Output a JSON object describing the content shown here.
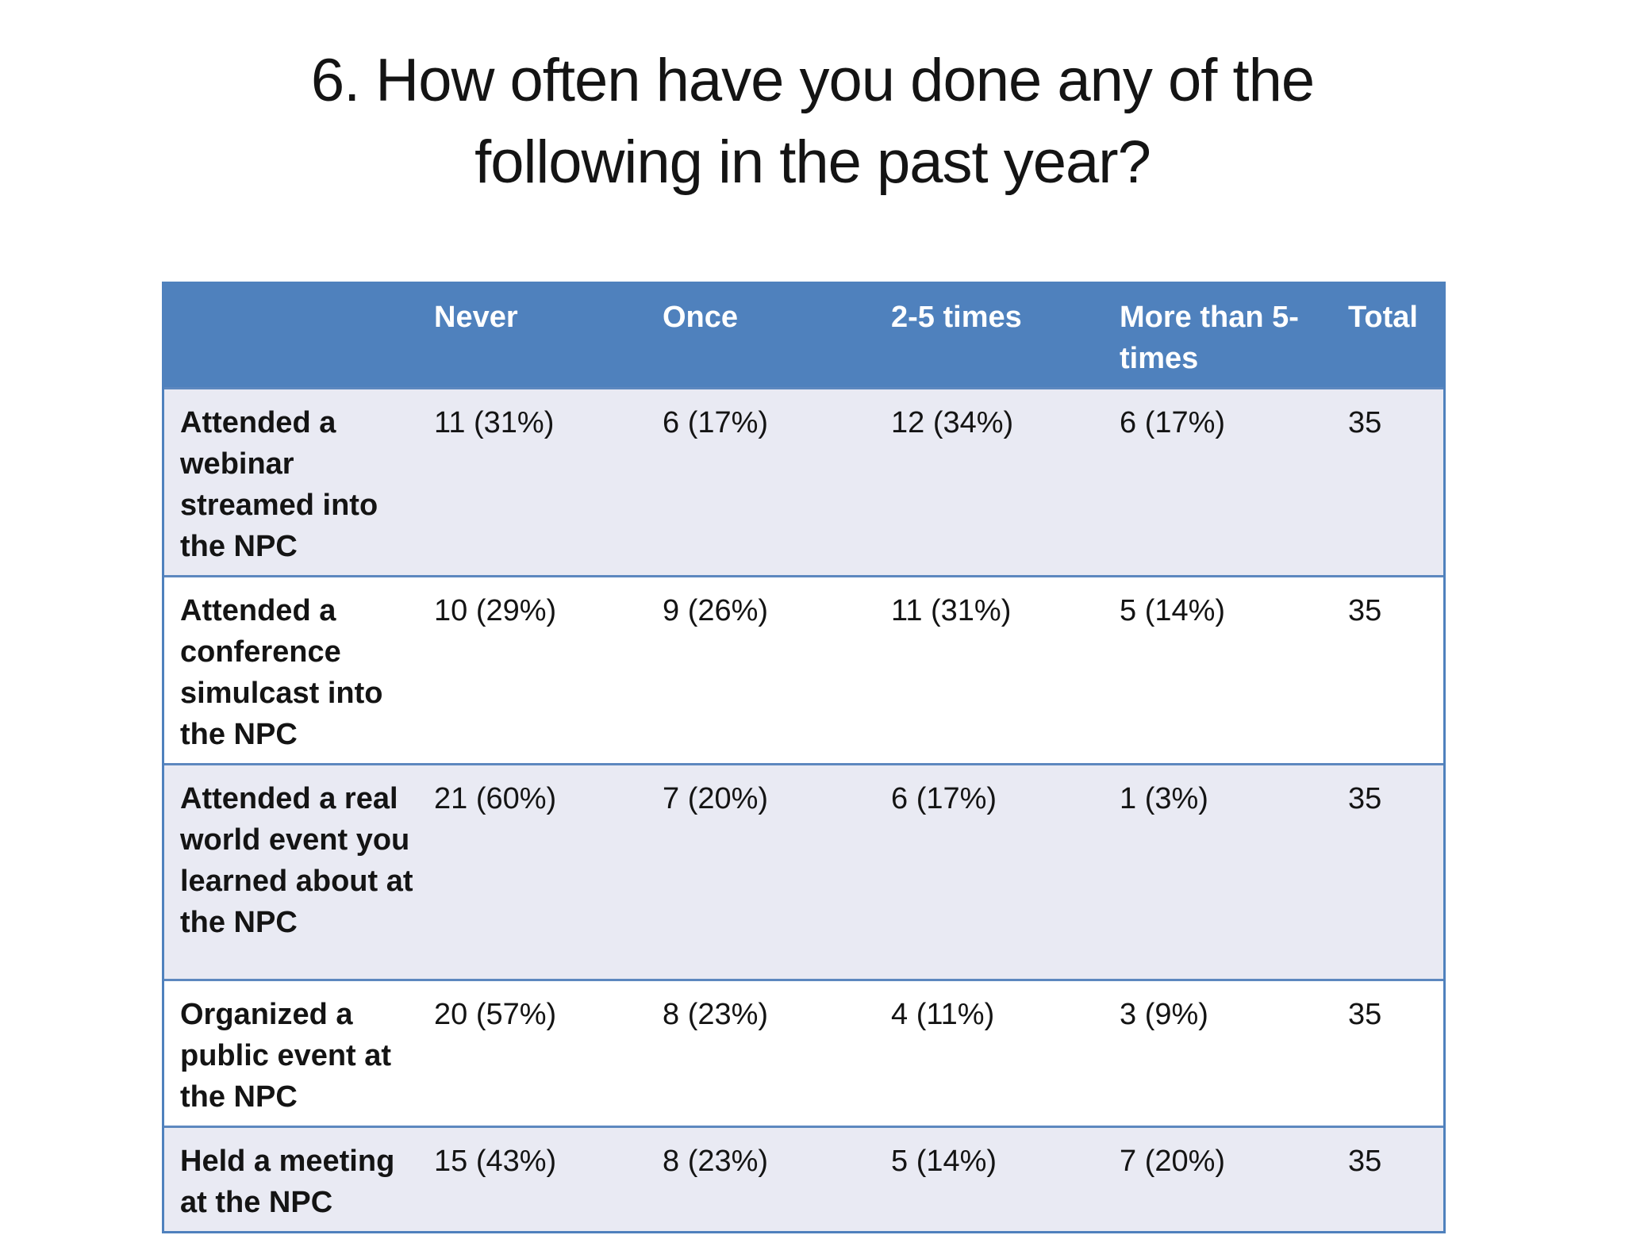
{
  "title": "6. How often have you done any of the following in the past year?",
  "table": {
    "columns": [
      "",
      "Never",
      "Once",
      "2-5 times",
      "More than 5-times",
      "Total"
    ],
    "rows": [
      {
        "cells": [
          "Attended a webinar streamed into the NPC",
          "11 (31%)",
          "6 (17%)",
          "12 (34%)",
          "6 (17%)",
          "35"
        ]
      },
      {
        "cells": [
          "Attended a conference simulcast into the NPC",
          "10 (29%)",
          "9 (26%)",
          "11 (31%)",
          "5 (14%)",
          "35"
        ]
      },
      {
        "cells": [
          "Attended a real world event you learned about at the NPC",
          "21 (60%)",
          "7 (20%)",
          "6 (17%)",
          "1 (3%)",
          "35"
        ]
      },
      {
        "cells": [
          "Organized a public event at the NPC",
          "20 (57%)",
          "8 (23%)",
          "4 (11%)",
          "3 (9%)",
          "35"
        ]
      },
      {
        "cells": [
          "Held a meeting at the NPC",
          "15 (43%)",
          "8 (23%)",
          "5 (14%)",
          "7 (20%)",
          "35"
        ]
      }
    ]
  },
  "chart_data": {
    "type": "table",
    "title": "6. How often have you done any of the following in the past year?",
    "categories": [
      "Never",
      "Once",
      "2-5 times",
      "More than 5-times",
      "Total"
    ],
    "series": [
      {
        "name": "Attended a webinar streamed into the NPC",
        "values": [
          "11 (31%)",
          "6 (17%)",
          "12 (34%)",
          "6 (17%)",
          "35"
        ]
      },
      {
        "name": "Attended a conference simulcast into the NPC",
        "values": [
          "10 (29%)",
          "9 (26%)",
          "11 (31%)",
          "5 (14%)",
          "35"
        ]
      },
      {
        "name": "Attended a real world event you learned about at the NPC",
        "values": [
          "21 (60%)",
          "7 (20%)",
          "6 (17%)",
          "1 (3%)",
          "35"
        ]
      },
      {
        "name": "Organized a public event at the NPC",
        "values": [
          "20 (57%)",
          "8 (23%)",
          "4 (11%)",
          "3 (9%)",
          "35"
        ]
      },
      {
        "name": "Held a meeting at the NPC",
        "values": [
          "15 (43%)",
          "8 (23%)",
          "5 (14%)",
          "7 (20%)",
          "35"
        ]
      }
    ]
  },
  "colors": {
    "header_bg": "#4f81bd",
    "header_text": "#ffffff",
    "row_alt_bg": "#e9eaf3",
    "row_bg": "#ffffff",
    "border": "#5d88bf",
    "title_text": "#141414"
  }
}
